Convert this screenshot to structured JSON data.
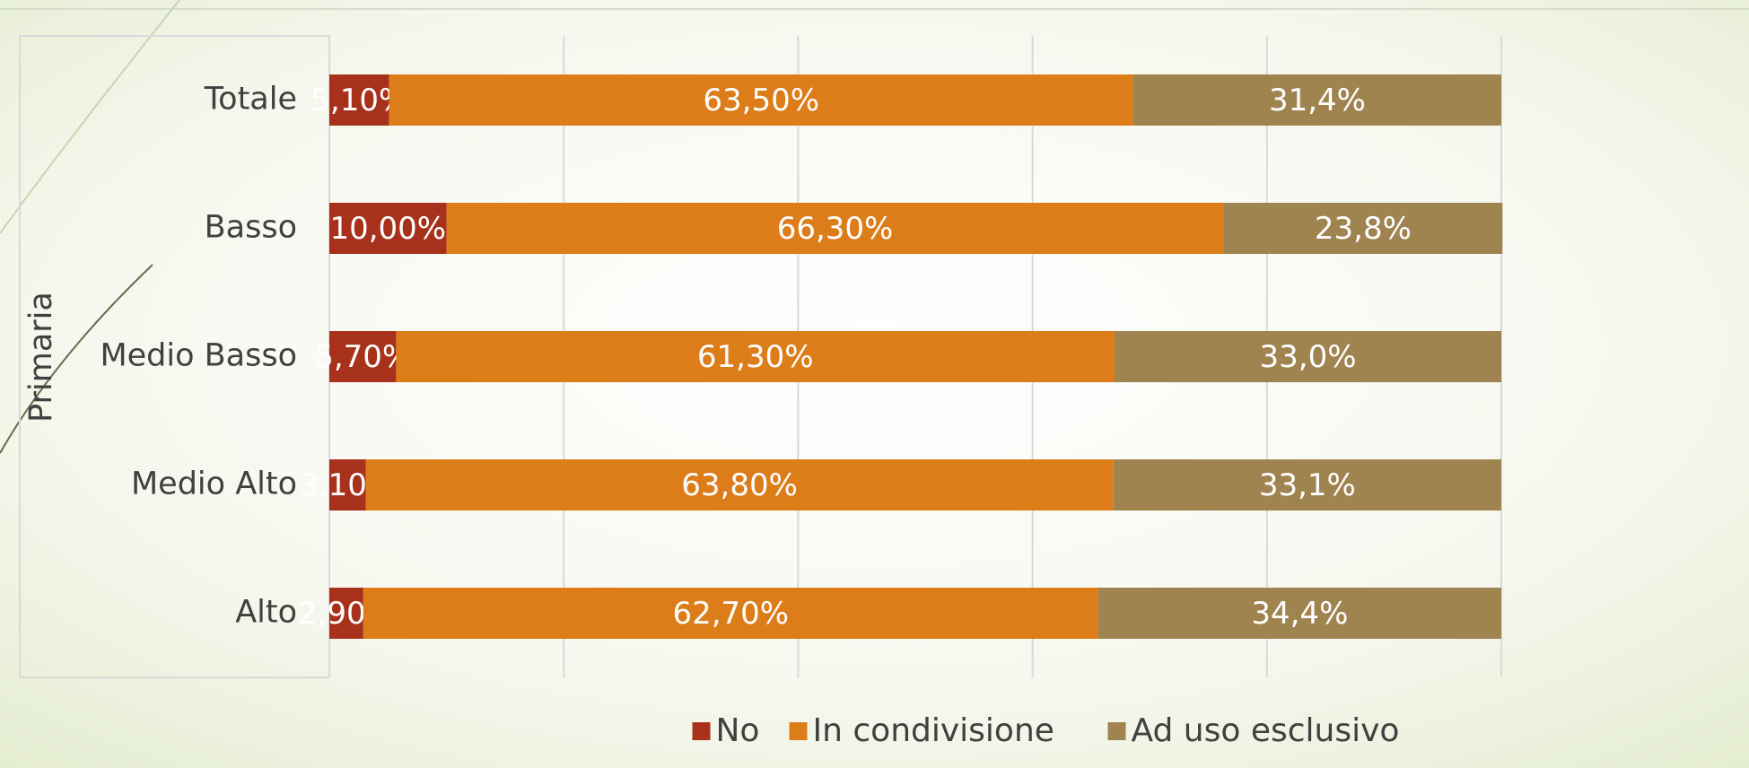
{
  "chart_data": {
    "type": "stacked-bar-horizontal",
    "group_label": "Primaria",
    "categories": [
      "Totale",
      "Basso",
      "Medio Basso",
      "Medio Alto",
      "Alto"
    ],
    "series": [
      {
        "name": "No",
        "color": "#a8311c",
        "values": [
          5.1,
          10.0,
          5.7,
          3.1,
          2.9
        ],
        "value_labels": [
          "5,10%",
          "10,00%",
          "5,70%",
          "3,10%",
          "2,90%"
        ]
      },
      {
        "name": "In condivisione",
        "color": "#dd7d1a",
        "values": [
          63.5,
          66.3,
          61.3,
          63.8,
          62.7
        ],
        "value_labels": [
          "63,50%",
          "66,30%",
          "61,30%",
          "63,80%",
          "62,70%"
        ]
      },
      {
        "name": "Ad uso esclusivo",
        "color": "#a08450",
        "values": [
          31.4,
          23.8,
          33.0,
          33.1,
          34.4
        ],
        "value_labels": [
          "31,4%",
          "23,8%",
          "33,0%",
          "33,1%",
          "34,4%"
        ]
      }
    ],
    "xlim": [
      0,
      100
    ],
    "xticks": [
      0,
      20,
      40,
      60,
      80,
      100
    ],
    "grid": true
  }
}
